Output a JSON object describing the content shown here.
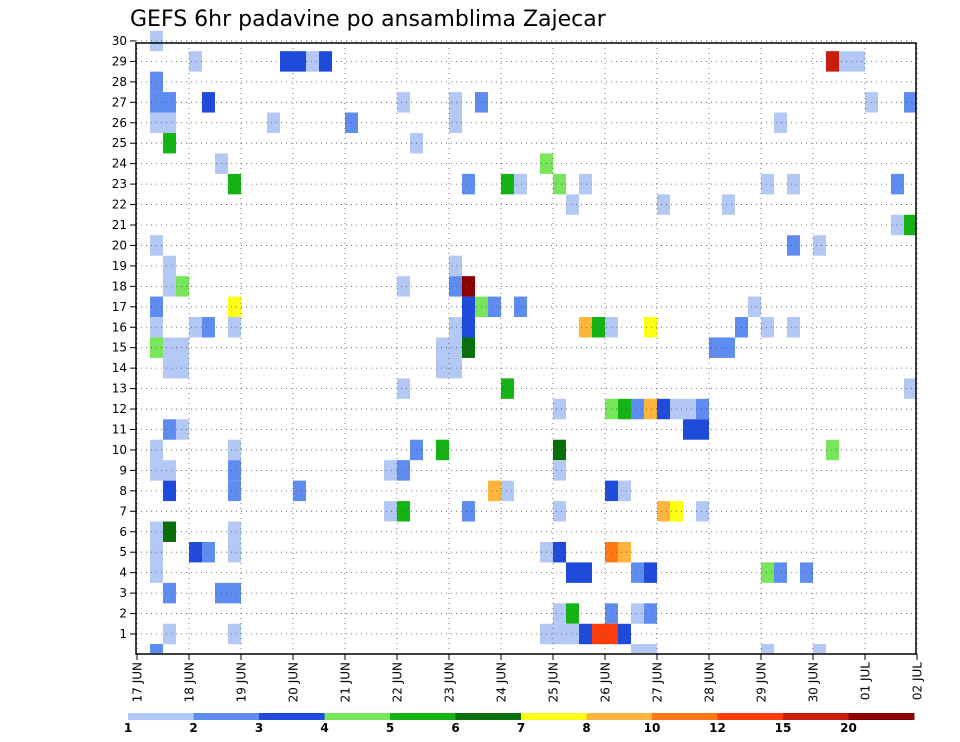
{
  "chart_data": {
    "type": "heatmap",
    "title": "GEFS 6hr padavine po ansamblima Zajecar",
    "xlabel": "",
    "ylabel": "",
    "x_tick_labels": [
      "17 JUN",
      "18 JUN",
      "19 JUN",
      "20 JUN",
      "21 JUN",
      "22 JUN",
      "23 JUN",
      "24 JUN",
      "25 JUN",
      "26 JUN",
      "27 JUN",
      "28 JUN",
      "29 JUN",
      "30 JUN",
      "01 JUL",
      "02 JUL"
    ],
    "y_tick_labels": [
      "1",
      "2",
      "3",
      "4",
      "5",
      "6",
      "7",
      "8",
      "9",
      "10",
      "11",
      "12",
      "13",
      "14",
      "15",
      "16",
      "17",
      "18",
      "19",
      "20",
      "21",
      "22",
      "23",
      "24",
      "25",
      "26",
      "27",
      "28",
      "29",
      "30"
    ],
    "x_range_days": [
      0,
      15
    ],
    "y_range_members": [
      1,
      30
    ],
    "grid": true,
    "legend_position": "bottom",
    "color_levels": [
      {
        "label": "1",
        "color": "#b4c8f5"
      },
      {
        "label": "2",
        "color": "#5f8cf0"
      },
      {
        "label": "3",
        "color": "#1e4bdc"
      },
      {
        "label": "4",
        "color": "#78e65a"
      },
      {
        "label": "5",
        "color": "#14b414"
      },
      {
        "label": "6",
        "color": "#0a6e0a"
      },
      {
        "label": "7",
        "color": "#ffff14"
      },
      {
        "label": "8",
        "color": "#ffb43c"
      },
      {
        "label": "10",
        "color": "#ff7814"
      },
      {
        "label": "12",
        "color": "#ff3c0a"
      },
      {
        "label": "15",
        "color": "#c81e0a"
      },
      {
        "label": "20",
        "color": "#8c0000"
      }
    ],
    "legend_labels": [
      "1",
      "2",
      "3",
      "4",
      "5",
      "6",
      "7",
      "8",
      "10",
      "12",
      "15",
      "20"
    ],
    "cells": [
      {
        "t": 1,
        "m": 30,
        "c": 0
      },
      {
        "t": 11,
        "m": 29,
        "c": 2
      },
      {
        "t": 12,
        "m": 29,
        "c": 2
      },
      {
        "t": 13,
        "m": 29,
        "c": 0
      },
      {
        "t": 14,
        "m": 29,
        "c": 2
      },
      {
        "t": 4,
        "m": 29,
        "c": 0
      },
      {
        "t": 53,
        "m": 29,
        "c": 10
      },
      {
        "t": 54,
        "m": 29,
        "c": 0
      },
      {
        "t": 55,
        "m": 29,
        "c": 0
      },
      {
        "t": 1,
        "m": 28,
        "c": 1
      },
      {
        "t": 61,
        "m": 28,
        "c": 2
      },
      {
        "t": 1,
        "m": 27,
        "c": 1
      },
      {
        "t": 2,
        "m": 27,
        "c": 1
      },
      {
        "t": 5,
        "m": 27,
        "c": 2
      },
      {
        "t": 20,
        "m": 27,
        "c": 0
      },
      {
        "t": 24,
        "m": 27,
        "c": 0
      },
      {
        "t": 26,
        "m": 27,
        "c": 1
      },
      {
        "t": 56,
        "m": 27,
        "c": 0
      },
      {
        "t": 59,
        "m": 27,
        "c": 1
      },
      {
        "t": 60,
        "m": 27,
        "c": 0
      },
      {
        "t": 61,
        "m": 27,
        "c": 1
      },
      {
        "t": 62,
        "m": 27,
        "c": 1
      },
      {
        "t": 1,
        "m": 26,
        "c": 0
      },
      {
        "t": 2,
        "m": 26,
        "c": 0
      },
      {
        "t": 10,
        "m": 26,
        "c": 0
      },
      {
        "t": 16,
        "m": 26,
        "c": 1
      },
      {
        "t": 24,
        "m": 26,
        "c": 0
      },
      {
        "t": 49,
        "m": 26,
        "c": 0
      },
      {
        "t": 2,
        "m": 25,
        "c": 4
      },
      {
        "t": 21,
        "m": 25,
        "c": 0
      },
      {
        "t": 62,
        "m": 25,
        "c": 0
      },
      {
        "t": 6,
        "m": 24,
        "c": 0
      },
      {
        "t": 31,
        "m": 24,
        "c": 3
      },
      {
        "t": 7,
        "m": 23,
        "c": 4
      },
      {
        "t": 25,
        "m": 23,
        "c": 1
      },
      {
        "t": 28,
        "m": 23,
        "c": 4
      },
      {
        "t": 29,
        "m": 23,
        "c": 0
      },
      {
        "t": 32,
        "m": 23,
        "c": 3
      },
      {
        "t": 34,
        "m": 23,
        "c": 0
      },
      {
        "t": 48,
        "m": 23,
        "c": 0
      },
      {
        "t": 50,
        "m": 23,
        "c": 0
      },
      {
        "t": 58,
        "m": 23,
        "c": 1
      },
      {
        "t": 33,
        "m": 22,
        "c": 0
      },
      {
        "t": 40,
        "m": 22,
        "c": 0
      },
      {
        "t": 45,
        "m": 22,
        "c": 0
      },
      {
        "t": 58,
        "m": 21,
        "c": 0
      },
      {
        "t": 59,
        "m": 21,
        "c": 4
      },
      {
        "t": 1,
        "m": 20,
        "c": 0
      },
      {
        "t": 50,
        "m": 20,
        "c": 1
      },
      {
        "t": 52,
        "m": 20,
        "c": 0
      },
      {
        "t": 2,
        "m": 19,
        "c": 0
      },
      {
        "t": 24,
        "m": 19,
        "c": 0
      },
      {
        "t": 2,
        "m": 18,
        "c": 0
      },
      {
        "t": 3,
        "m": 18,
        "c": 3
      },
      {
        "t": 20,
        "m": 18,
        "c": 0
      },
      {
        "t": 24,
        "m": 18,
        "c": 1
      },
      {
        "t": 25,
        "m": 18,
        "c": 11
      },
      {
        "t": 62,
        "m": 18,
        "c": 0
      },
      {
        "t": 1,
        "m": 17,
        "c": 1
      },
      {
        "t": 7,
        "m": 17,
        "c": 6
      },
      {
        "t": 25,
        "m": 17,
        "c": 2
      },
      {
        "t": 26,
        "m": 17,
        "c": 3
      },
      {
        "t": 27,
        "m": 17,
        "c": 1
      },
      {
        "t": 29,
        "m": 17,
        "c": 1
      },
      {
        "t": 47,
        "m": 17,
        "c": 0
      },
      {
        "t": 1,
        "m": 16,
        "c": 0
      },
      {
        "t": 4,
        "m": 16,
        "c": 0
      },
      {
        "t": 5,
        "m": 16,
        "c": 1
      },
      {
        "t": 7,
        "m": 16,
        "c": 0
      },
      {
        "t": 24,
        "m": 16,
        "c": 0
      },
      {
        "t": 25,
        "m": 16,
        "c": 2
      },
      {
        "t": 34,
        "m": 16,
        "c": 7
      },
      {
        "t": 35,
        "m": 16,
        "c": 4
      },
      {
        "t": 36,
        "m": 16,
        "c": 0
      },
      {
        "t": 39,
        "m": 16,
        "c": 6
      },
      {
        "t": 46,
        "m": 16,
        "c": 1
      },
      {
        "t": 48,
        "m": 16,
        "c": 0
      },
      {
        "t": 50,
        "m": 16,
        "c": 0
      },
      {
        "t": 1,
        "m": 15,
        "c": 3
      },
      {
        "t": 2,
        "m": 15,
        "c": 0
      },
      {
        "t": 3,
        "m": 15,
        "c": 0
      },
      {
        "t": 23,
        "m": 15,
        "c": 0
      },
      {
        "t": 24,
        "m": 15,
        "c": 0
      },
      {
        "t": 25,
        "m": 15,
        "c": 5
      },
      {
        "t": 44,
        "m": 15,
        "c": 1
      },
      {
        "t": 45,
        "m": 15,
        "c": 1
      },
      {
        "t": 2,
        "m": 14,
        "c": 0
      },
      {
        "t": 3,
        "m": 14,
        "c": 0
      },
      {
        "t": 23,
        "m": 14,
        "c": 0
      },
      {
        "t": 24,
        "m": 14,
        "c": 0
      },
      {
        "t": 20,
        "m": 13,
        "c": 0
      },
      {
        "t": 28,
        "m": 13,
        "c": 4
      },
      {
        "t": 59,
        "m": 13,
        "c": 0
      },
      {
        "t": 32,
        "m": 12,
        "c": 0
      },
      {
        "t": 36,
        "m": 12,
        "c": 3
      },
      {
        "t": 37,
        "m": 12,
        "c": 4
      },
      {
        "t": 38,
        "m": 12,
        "c": 1
      },
      {
        "t": 39,
        "m": 12,
        "c": 7
      },
      {
        "t": 40,
        "m": 12,
        "c": 2
      },
      {
        "t": 41,
        "m": 12,
        "c": 0
      },
      {
        "t": 42,
        "m": 12,
        "c": 0
      },
      {
        "t": 43,
        "m": 12,
        "c": 1
      },
      {
        "t": 2,
        "m": 11,
        "c": 1
      },
      {
        "t": 3,
        "m": 11,
        "c": 0
      },
      {
        "t": 42,
        "m": 11,
        "c": 2
      },
      {
        "t": 43,
        "m": 11,
        "c": 2
      },
      {
        "t": 60,
        "m": 11,
        "c": 2
      },
      {
        "t": 1,
        "m": 10,
        "c": 0
      },
      {
        "t": 7,
        "m": 10,
        "c": 0
      },
      {
        "t": 21,
        "m": 10,
        "c": 1
      },
      {
        "t": 23,
        "m": 10,
        "c": 4
      },
      {
        "t": 32,
        "m": 10,
        "c": 5
      },
      {
        "t": 53,
        "m": 10,
        "c": 3
      },
      {
        "t": 1,
        "m": 9,
        "c": 0
      },
      {
        "t": 2,
        "m": 9,
        "c": 0
      },
      {
        "t": 7,
        "m": 9,
        "c": 1
      },
      {
        "t": 19,
        "m": 9,
        "c": 0
      },
      {
        "t": 20,
        "m": 9,
        "c": 1
      },
      {
        "t": 32,
        "m": 9,
        "c": 0
      },
      {
        "t": 2,
        "m": 8,
        "c": 2
      },
      {
        "t": 7,
        "m": 8,
        "c": 1
      },
      {
        "t": 12,
        "m": 8,
        "c": 1
      },
      {
        "t": 27,
        "m": 8,
        "c": 7
      },
      {
        "t": 28,
        "m": 8,
        "c": 0
      },
      {
        "t": 36,
        "m": 8,
        "c": 2
      },
      {
        "t": 37,
        "m": 8,
        "c": 0
      },
      {
        "t": 19,
        "m": 7,
        "c": 0
      },
      {
        "t": 20,
        "m": 7,
        "c": 4
      },
      {
        "t": 25,
        "m": 7,
        "c": 1
      },
      {
        "t": 32,
        "m": 7,
        "c": 0
      },
      {
        "t": 40,
        "m": 7,
        "c": 7
      },
      {
        "t": 41,
        "m": 7,
        "c": 6
      },
      {
        "t": 43,
        "m": 7,
        "c": 0
      },
      {
        "t": 60,
        "m": 7,
        "c": 0
      },
      {
        "t": 61,
        "m": 7,
        "c": 0
      },
      {
        "t": 1,
        "m": 6,
        "c": 0
      },
      {
        "t": 2,
        "m": 6,
        "c": 5
      },
      {
        "t": 7,
        "m": 6,
        "c": 0
      },
      {
        "t": 1,
        "m": 5,
        "c": 0
      },
      {
        "t": 4,
        "m": 5,
        "c": 2
      },
      {
        "t": 5,
        "m": 5,
        "c": 1
      },
      {
        "t": 7,
        "m": 5,
        "c": 0
      },
      {
        "t": 31,
        "m": 5,
        "c": 0
      },
      {
        "t": 32,
        "m": 5,
        "c": 2
      },
      {
        "t": 36,
        "m": 5,
        "c": 8
      },
      {
        "t": 37,
        "m": 5,
        "c": 7
      },
      {
        "t": 1,
        "m": 4,
        "c": 0
      },
      {
        "t": 33,
        "m": 4,
        "c": 2
      },
      {
        "t": 34,
        "m": 4,
        "c": 2
      },
      {
        "t": 38,
        "m": 4,
        "c": 1
      },
      {
        "t": 39,
        "m": 4,
        "c": 2
      },
      {
        "t": 48,
        "m": 4,
        "c": 3
      },
      {
        "t": 49,
        "m": 4,
        "c": 1
      },
      {
        "t": 51,
        "m": 4,
        "c": 1
      },
      {
        "t": 2,
        "m": 3,
        "c": 1
      },
      {
        "t": 6,
        "m": 3,
        "c": 1
      },
      {
        "t": 7,
        "m": 3,
        "c": 1
      },
      {
        "t": 32,
        "m": 2,
        "c": 0
      },
      {
        "t": 33,
        "m": 2,
        "c": 4
      },
      {
        "t": 36,
        "m": 2,
        "c": 1
      },
      {
        "t": 38,
        "m": 2,
        "c": 0
      },
      {
        "t": 39,
        "m": 2,
        "c": 1
      },
      {
        "t": 2,
        "m": 1,
        "c": 0
      },
      {
        "t": 7,
        "m": 1,
        "c": 0
      },
      {
        "t": 31,
        "m": 1,
        "c": 0
      },
      {
        "t": 32,
        "m": 1,
        "c": 0
      },
      {
        "t": 33,
        "m": 1,
        "c": 0
      },
      {
        "t": 34,
        "m": 1,
        "c": 2
      },
      {
        "t": 35,
        "m": 1,
        "c": 9
      },
      {
        "t": 36,
        "m": 1,
        "c": 9
      },
      {
        "t": 37,
        "m": 1,
        "c": 2
      },
      {
        "t": 1,
        "m": 0,
        "c": 1
      },
      {
        "t": 38,
        "m": 0,
        "c": 0
      },
      {
        "t": 39,
        "m": 0,
        "c": 0
      },
      {
        "t": 48,
        "m": 0,
        "c": 0
      },
      {
        "t": 52,
        "m": 0,
        "c": 0
      },
      {
        "t": 62,
        "m": 0,
        "c": 2
      }
    ]
  }
}
